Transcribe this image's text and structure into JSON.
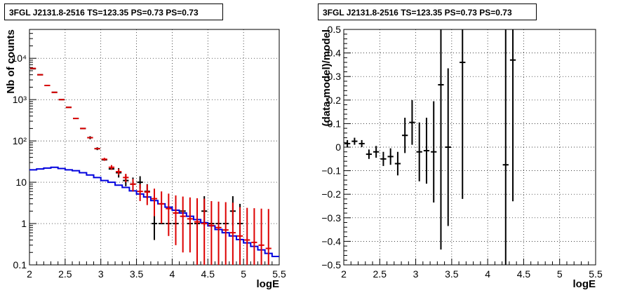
{
  "chart_data": [
    {
      "type": "line",
      "title": "3FGL J2131.8-2516 TS=123.35 PS=0.73 PS=0.73",
      "xlabel": "logE",
      "ylabel": "Nb of counts",
      "xlim": [
        2,
        5.5
      ],
      "ylim": [
        0.1,
        50000
      ],
      "yscale": "log",
      "grid": true,
      "x_ticks": [
        "2",
        "2.5",
        "3",
        "3.5",
        "4",
        "4.5",
        "5",
        "5.5"
      ],
      "y_ticks": [
        "0.1",
        "1",
        "10",
        "10²",
        "10³",
        "10⁴"
      ],
      "colors": {
        "data": "#000000",
        "model": "#dd0000",
        "component": "#0000dd"
      },
      "series": [
        {
          "kind": "points",
          "color": "#000000",
          "x": [
            2.05,
            2.15,
            2.25,
            2.35,
            2.45,
            2.55,
            2.65,
            2.75,
            2.85,
            2.95,
            3.05,
            3.15,
            3.25,
            3.35,
            3.45,
            3.55,
            3.65,
            3.75,
            3.85,
            3.95,
            4.05,
            4.15,
            4.25,
            4.35,
            4.45,
            4.55,
            4.65,
            4.75,
            4.85,
            4.95
          ],
          "y": [
            5600,
            4000,
            2200,
            1500,
            1000,
            650,
            350,
            200,
            120,
            65,
            35,
            21,
            17,
            11,
            9,
            10,
            6,
            1,
            1,
            1,
            1,
            2,
            1,
            1,
            2,
            1,
            1,
            1,
            2,
            1
          ],
          "yerr_lo": [
            0,
            0,
            0,
            0,
            0,
            0,
            0,
            0,
            10,
            5,
            0,
            0,
            4,
            3,
            3,
            3,
            2,
            0.6,
            0,
            0,
            0,
            0,
            0,
            0,
            1.1,
            0,
            0,
            0,
            1.1,
            0.6
          ],
          "yerr_hi": [
            0,
            0,
            0,
            0,
            0,
            0,
            0,
            0,
            10,
            5,
            0,
            0,
            5,
            4,
            4,
            4,
            3,
            2,
            0,
            0,
            0,
            0,
            0,
            0,
            2.6,
            0,
            0,
            0,
            2.6,
            2
          ]
        },
        {
          "kind": "points",
          "color": "#dd0000",
          "x": [
            2.05,
            2.15,
            2.25,
            2.35,
            2.45,
            2.55,
            2.65,
            2.75,
            2.85,
            2.95,
            3.05,
            3.15,
            3.25,
            3.35,
            3.45,
            3.55,
            3.65,
            3.75,
            3.85,
            3.95,
            4.05,
            4.15,
            4.25,
            4.35,
            4.45,
            4.55,
            4.65,
            4.75,
            4.85,
            4.95,
            5.05,
            5.15,
            5.25,
            5.35
          ],
          "y": [
            5700,
            4000,
            2200,
            1500,
            1000,
            650,
            350,
            200,
            120,
            65,
            36,
            23,
            18,
            13,
            9,
            6,
            5.8,
            4,
            3,
            2.3,
            1.8,
            1.5,
            1.3,
            1.1,
            1.0,
            0.9,
            0.8,
            0.7,
            0.6,
            0.5,
            0.4,
            0.35,
            0.3,
            0.25
          ],
          "yerr_lo": [
            0,
            0,
            0,
            0,
            0,
            0,
            0,
            0,
            0,
            0,
            3,
            3,
            3,
            3,
            3,
            2.5,
            3,
            2.5,
            2,
            1.8,
            1.5,
            1.3,
            1.1,
            1,
            0.9,
            0.8,
            0.7,
            0.6,
            0.5,
            0.42,
            0.33,
            0.28,
            0.24,
            0.2
          ],
          "yerr_hi": [
            0,
            0,
            0,
            0,
            0,
            0,
            0,
            0,
            0,
            0,
            3,
            3,
            3,
            3,
            3,
            3,
            3,
            3,
            3,
            3,
            3,
            3,
            3,
            3,
            3,
            2.6,
            2.6,
            2.6,
            2.6,
            2,
            2,
            2,
            2,
            2
          ]
        },
        {
          "kind": "step",
          "color": "#0000dd",
          "x_edges": [
            2.0,
            2.1,
            2.2,
            2.3,
            2.4,
            2.5,
            2.6,
            2.7,
            2.8,
            2.9,
            3.0,
            3.1,
            3.2,
            3.3,
            3.4,
            3.5,
            3.6,
            3.7,
            3.8,
            3.9,
            4.0,
            4.1,
            4.2,
            4.3,
            4.4,
            4.5,
            4.6,
            4.7,
            4.8,
            4.9,
            5.0,
            5.1,
            5.2,
            5.3,
            5.4,
            5.5
          ],
          "y": [
            20,
            21,
            22,
            23,
            21.5,
            20,
            19,
            17,
            15,
            13,
            11,
            10,
            8.5,
            7.5,
            6.2,
            5.2,
            4.4,
            3.6,
            3.0,
            2.5,
            2.1,
            1.8,
            1.5,
            1.25,
            1.05,
            0.88,
            0.72,
            0.6,
            0.5,
            0.41,
            0.34,
            0.28,
            0.23,
            0.19,
            0.16
          ]
        }
      ]
    },
    {
      "type": "scatter",
      "title": "3FGL J2131.8-2516 TS=123.35 PS=0.73 PS=0.73",
      "xlabel": "logE",
      "ylabel": "(data-model)/model",
      "xlim": [
        2,
        5.5
      ],
      "ylim": [
        -0.5,
        0.5
      ],
      "grid": true,
      "x_ticks": [
        "2",
        "2.5",
        "3",
        "3.5",
        "4",
        "4.5",
        "5",
        "5.5"
      ],
      "y_ticks": [
        "−0.5",
        "−0.4",
        "−0.3",
        "−0.2",
        "−0.1",
        "0",
        "0.1",
        "0.2",
        "0.3",
        "0.4",
        "0.5"
      ],
      "series": [
        {
          "color": "#000000",
          "x": [
            2.05,
            2.15,
            2.25,
            2.35,
            2.45,
            2.55,
            2.65,
            2.75,
            2.85,
            2.95,
            3.05,
            3.15,
            3.25,
            3.35,
            3.45,
            3.65,
            4.25,
            4.35
          ],
          "y": [
            0.015,
            0.025,
            0.015,
            -0.03,
            -0.02,
            -0.05,
            -0.04,
            -0.07,
            0.05,
            0.105,
            -0.02,
            -0.015,
            -0.02,
            0.265,
            0.0,
            0.36,
            -0.075,
            0.37
          ],
          "yerr": [
            0.015,
            0.015,
            0.015,
            0.02,
            0.025,
            0.03,
            0.035,
            0.05,
            0.075,
            0.095,
            0.125,
            0.14,
            0.215,
            0.7,
            0.335,
            0.58,
            0.6,
            0.6
          ]
        }
      ]
    }
  ]
}
